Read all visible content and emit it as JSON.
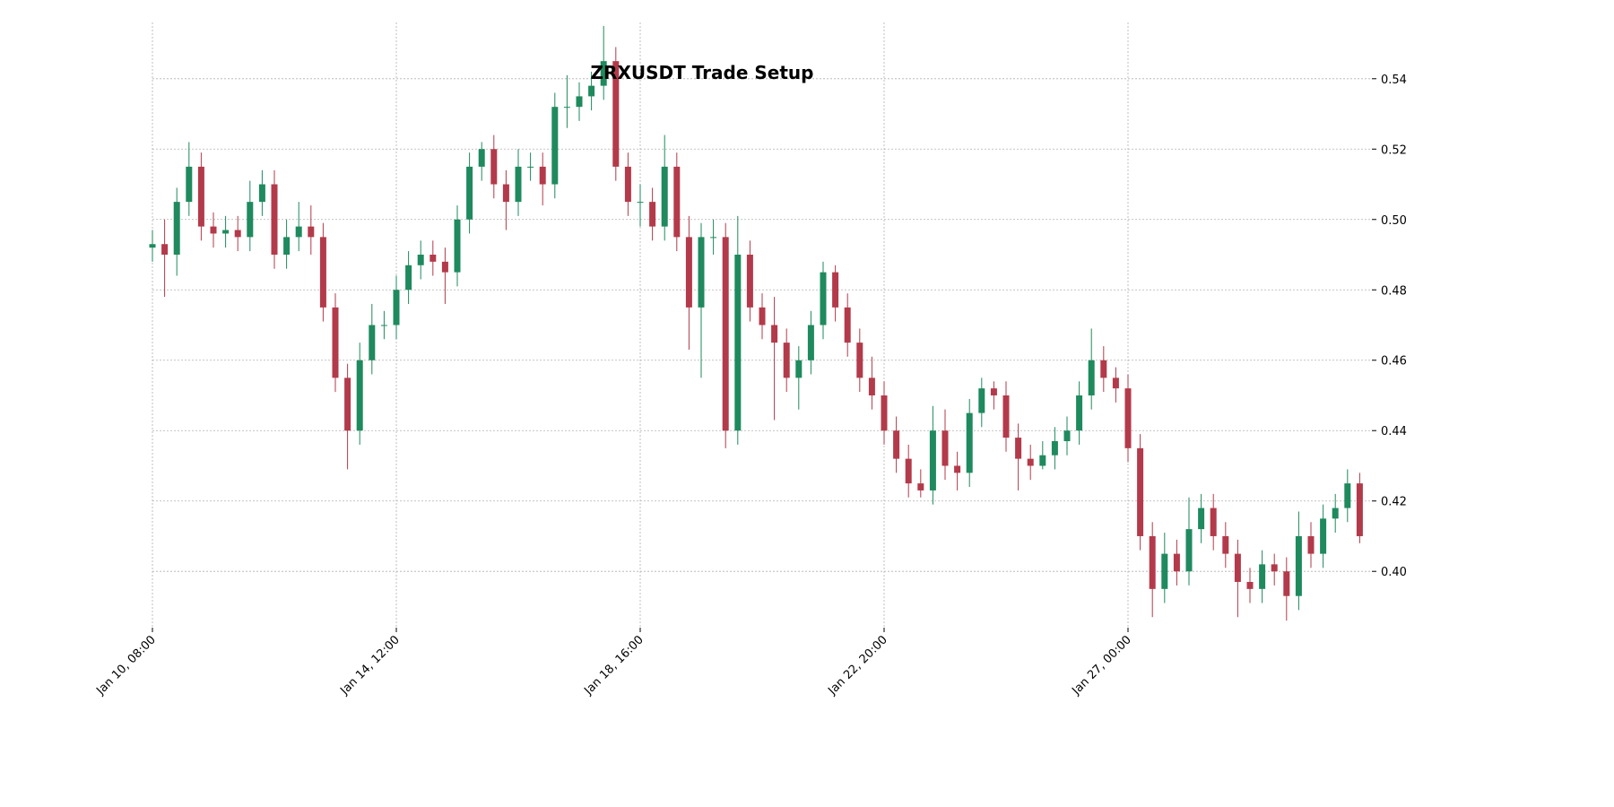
{
  "chart_data": {
    "type": "candlestick",
    "title": "ZRXUSDT Trade Setup",
    "x": [
      "Jan 10, 08:00",
      "Jan 10, 13:00",
      "Jan 10, 18:00",
      "Jan 10, 23:00",
      "Jan 11, 04:00",
      "Jan 11, 09:00",
      "Jan 11, 14:00",
      "Jan 11, 19:00",
      "Jan 12, 00:00",
      "Jan 12, 05:00",
      "Jan 12, 10:00",
      "Jan 12, 15:00",
      "Jan 12, 20:00",
      "Jan 13, 01:00",
      "Jan 13, 06:00",
      "Jan 13, 11:00",
      "Jan 13, 16:00",
      "Jan 13, 21:00",
      "Jan 14, 02:00",
      "Jan 14, 07:00",
      "Jan 14, 12:00",
      "Jan 14, 17:00",
      "Jan 14, 22:00",
      "Jan 15, 03:00",
      "Jan 15, 08:00",
      "Jan 15, 13:00",
      "Jan 15, 18:00",
      "Jan 15, 23:00",
      "Jan 16, 04:00",
      "Jan 16, 09:00",
      "Jan 16, 14:00",
      "Jan 16, 19:00",
      "Jan 17, 00:00",
      "Jan 17, 05:00",
      "Jan 17, 10:00",
      "Jan 17, 15:00",
      "Jan 17, 20:00",
      "Jan 18, 01:00",
      "Jan 18, 06:00",
      "Jan 18, 11:00",
      "Jan 18, 16:00",
      "Jan 18, 21:00",
      "Jan 19, 02:00",
      "Jan 19, 07:00",
      "Jan 19, 12:00",
      "Jan 19, 17:00",
      "Jan 19, 22:00",
      "Jan 20, 03:00",
      "Jan 20, 08:00",
      "Jan 20, 13:00",
      "Jan 20, 18:00",
      "Jan 20, 23:00",
      "Jan 21, 04:00",
      "Jan 21, 09:00",
      "Jan 21, 14:00",
      "Jan 21, 19:00",
      "Jan 22, 00:00",
      "Jan 22, 05:00",
      "Jan 22, 10:00",
      "Jan 22, 15:00",
      "Jan 22, 20:00",
      "Jan 23, 01:00",
      "Jan 23, 06:00",
      "Jan 23, 11:00",
      "Jan 23, 16:00",
      "Jan 23, 21:00",
      "Jan 24, 02:00",
      "Jan 24, 07:00",
      "Jan 24, 12:00",
      "Jan 24, 17:00",
      "Jan 24, 22:00",
      "Jan 25, 03:00",
      "Jan 25, 08:00",
      "Jan 25, 13:00",
      "Jan 25, 18:00",
      "Jan 25, 23:00",
      "Jan 26, 04:00",
      "Jan 26, 09:00",
      "Jan 26, 14:00",
      "Jan 26, 19:00",
      "Jan 27, 00:00",
      "Jan 27, 05:00",
      "Jan 27, 10:00",
      "Jan 27, 15:00",
      "Jan 27, 20:00",
      "Jan 28, 01:00",
      "Jan 28, 06:00",
      "Jan 28, 11:00",
      "Jan 28, 16:00",
      "Jan 28, 21:00",
      "Jan 29, 02:00",
      "Jan 29, 07:00",
      "Jan 29, 12:00",
      "Jan 29, 17:00",
      "Jan 29, 22:00",
      "Jan 30, 03:00",
      "Jan 30, 08:00",
      "Jan 30, 13:00",
      "Jan 30, 18:00",
      "Jan 30, 23:00"
    ],
    "open": [
      0.492,
      0.493,
      0.49,
      0.505,
      0.515,
      0.498,
      0.496,
      0.497,
      0.495,
      0.505,
      0.51,
      0.49,
      0.495,
      0.498,
      0.495,
      0.475,
      0.455,
      0.44,
      0.46,
      0.47,
      0.47,
      0.48,
      0.487,
      0.49,
      0.488,
      0.485,
      0.5,
      0.515,
      0.52,
      0.51,
      0.505,
      0.515,
      0.515,
      0.51,
      0.532,
      0.532,
      0.535,
      0.538,
      0.545,
      0.515,
      0.505,
      0.505,
      0.498,
      0.515,
      0.495,
      0.475,
      0.495,
      0.495,
      0.44,
      0.49,
      0.475,
      0.47,
      0.465,
      0.455,
      0.46,
      0.47,
      0.485,
      0.475,
      0.465,
      0.455,
      0.45,
      0.44,
      0.432,
      0.425,
      0.423,
      0.44,
      0.43,
      0.428,
      0.445,
      0.452,
      0.45,
      0.438,
      0.432,
      0.43,
      0.433,
      0.437,
      0.44,
      0.45,
      0.46,
      0.455,
      0.452,
      0.435,
      0.41,
      0.395,
      0.405,
      0.4,
      0.412,
      0.418,
      0.41,
      0.405,
      0.397,
      0.395,
      0.402,
      0.4,
      0.393,
      0.41,
      0.405,
      0.415,
      0.418,
      0.425
    ],
    "high": [
      0.497,
      0.5,
      0.509,
      0.522,
      0.519,
      0.502,
      0.501,
      0.501,
      0.511,
      0.514,
      0.514,
      0.5,
      0.505,
      0.504,
      0.499,
      0.479,
      0.459,
      0.465,
      0.476,
      0.474,
      0.484,
      0.491,
      0.494,
      0.494,
      0.492,
      0.504,
      0.519,
      0.522,
      0.524,
      0.514,
      0.52,
      0.519,
      0.519,
      0.536,
      0.541,
      0.539,
      0.542,
      0.555,
      0.549,
      0.519,
      0.51,
      0.509,
      0.524,
      0.519,
      0.501,
      0.499,
      0.5,
      0.499,
      0.501,
      0.494,
      0.479,
      0.478,
      0.469,
      0.464,
      0.474,
      0.488,
      0.487,
      0.479,
      0.469,
      0.461,
      0.454,
      0.444,
      0.436,
      0.429,
      0.447,
      0.446,
      0.434,
      0.449,
      0.455,
      0.454,
      0.454,
      0.442,
      0.436,
      0.437,
      0.441,
      0.444,
      0.454,
      0.469,
      0.464,
      0.458,
      0.456,
      0.439,
      0.414,
      0.411,
      0.409,
      0.421,
      0.422,
      0.422,
      0.414,
      0.409,
      0.401,
      0.406,
      0.405,
      0.404,
      0.417,
      0.414,
      0.419,
      0.422,
      0.429,
      0.428
    ],
    "low": [
      0.488,
      0.478,
      0.484,
      0.501,
      0.494,
      0.492,
      0.492,
      0.491,
      0.491,
      0.501,
      0.486,
      0.486,
      0.491,
      0.49,
      0.471,
      0.451,
      0.429,
      0.436,
      0.456,
      0.466,
      0.466,
      0.476,
      0.483,
      0.484,
      0.476,
      0.481,
      0.496,
      0.511,
      0.506,
      0.497,
      0.501,
      0.511,
      0.504,
      0.506,
      0.526,
      0.528,
      0.531,
      0.534,
      0.511,
      0.501,
      0.498,
      0.494,
      0.494,
      0.491,
      0.463,
      0.455,
      0.49,
      0.435,
      0.436,
      0.471,
      0.466,
      0.443,
      0.451,
      0.446,
      0.456,
      0.466,
      0.471,
      0.461,
      0.451,
      0.446,
      0.436,
      0.428,
      0.421,
      0.421,
      0.419,
      0.426,
      0.423,
      0.424,
      0.441,
      0.446,
      0.434,
      0.423,
      0.426,
      0.429,
      0.429,
      0.433,
      0.436,
      0.446,
      0.451,
      0.448,
      0.431,
      0.406,
      0.387,
      0.391,
      0.396,
      0.396,
      0.408,
      0.406,
      0.401,
      0.387,
      0.391,
      0.391,
      0.396,
      0.386,
      0.389,
      0.401,
      0.401,
      0.411,
      0.414,
      0.408
    ],
    "close": [
      0.493,
      0.49,
      0.505,
      0.515,
      0.498,
      0.496,
      0.497,
      0.495,
      0.505,
      0.51,
      0.49,
      0.495,
      0.498,
      0.495,
      0.475,
      0.455,
      0.44,
      0.46,
      0.47,
      0.47,
      0.48,
      0.487,
      0.49,
      0.488,
      0.485,
      0.5,
      0.515,
      0.52,
      0.51,
      0.505,
      0.515,
      0.515,
      0.51,
      0.532,
      0.532,
      0.535,
      0.538,
      0.545,
      0.515,
      0.505,
      0.505,
      0.498,
      0.515,
      0.495,
      0.475,
      0.495,
      0.495,
      0.44,
      0.49,
      0.475,
      0.47,
      0.465,
      0.455,
      0.46,
      0.47,
      0.485,
      0.475,
      0.465,
      0.455,
      0.45,
      0.44,
      0.432,
      0.425,
      0.423,
      0.44,
      0.43,
      0.428,
      0.445,
      0.452,
      0.45,
      0.438,
      0.432,
      0.43,
      0.433,
      0.437,
      0.44,
      0.45,
      0.46,
      0.455,
      0.452,
      0.435,
      0.41,
      0.395,
      0.405,
      0.4,
      0.412,
      0.418,
      0.41,
      0.405,
      0.397,
      0.395,
      0.402,
      0.4,
      0.393,
      0.41,
      0.405,
      0.415,
      0.418,
      0.425,
      0.41
    ],
    "up_color": "#1e8a5e",
    "down_color": "#b33a4a",
    "xticks": [
      "Jan 10, 08:00",
      "Jan 14, 12:00",
      "Jan 18, 16:00",
      "Jan 22, 20:00",
      "Jan 27, 00:00"
    ],
    "ylim": [
      0.384,
      0.556
    ],
    "yticks": [
      {
        "value": 0.4,
        "label": "0.40"
      },
      {
        "value": 0.42,
        "label": "0.42"
      },
      {
        "value": 0.44,
        "label": "0.44"
      },
      {
        "value": 0.46,
        "label": "0.46"
      },
      {
        "value": 0.48,
        "label": "0.48"
      },
      {
        "value": 0.5,
        "label": "0.50"
      },
      {
        "value": 0.52,
        "label": "0.52"
      },
      {
        "value": 0.54,
        "label": "0.54"
      }
    ],
    "grid": true
  }
}
